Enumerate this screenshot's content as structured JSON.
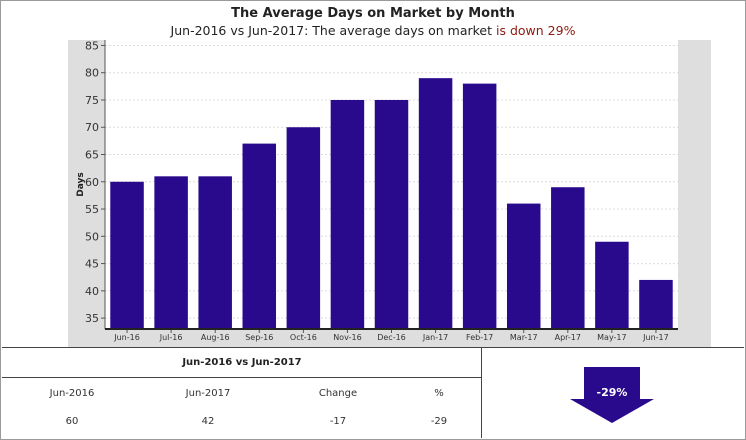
{
  "header": {
    "title": "The Average Days on Market by Month",
    "subtitle_prefix": "Jun-2016 vs Jun-2017: The average days on market ",
    "subtitle_highlight": "is down 29%"
  },
  "chart_data": {
    "type": "bar",
    "ylabel": "Days",
    "xlabel": "",
    "ylim": [
      33,
      86
    ],
    "yticks": [
      35,
      40,
      45,
      50,
      55,
      60,
      65,
      70,
      75,
      80,
      85
    ],
    "grid": true,
    "bar_color": "#2a0a8c",
    "categories": [
      "Jun-16",
      "Jul-16",
      "Aug-16",
      "Sep-16",
      "Oct-16",
      "Nov-16",
      "Dec-16",
      "Jan-17",
      "Feb-17",
      "Mar-17",
      "Apr-17",
      "May-17",
      "Jun-17"
    ],
    "values": [
      60,
      61,
      61,
      67,
      70,
      75,
      75,
      79,
      78,
      56,
      59,
      49,
      42
    ]
  },
  "comparison": {
    "title": "Jun-2016 vs Jun-2017",
    "headers": [
      "Jun-2016",
      "Jun-2017",
      "Change",
      "%"
    ],
    "values": [
      "60",
      "42",
      "-17",
      "-29"
    ]
  },
  "indicator": {
    "label": "-29%",
    "color": "#2a0a8c",
    "icon": "down-arrow-icon"
  }
}
